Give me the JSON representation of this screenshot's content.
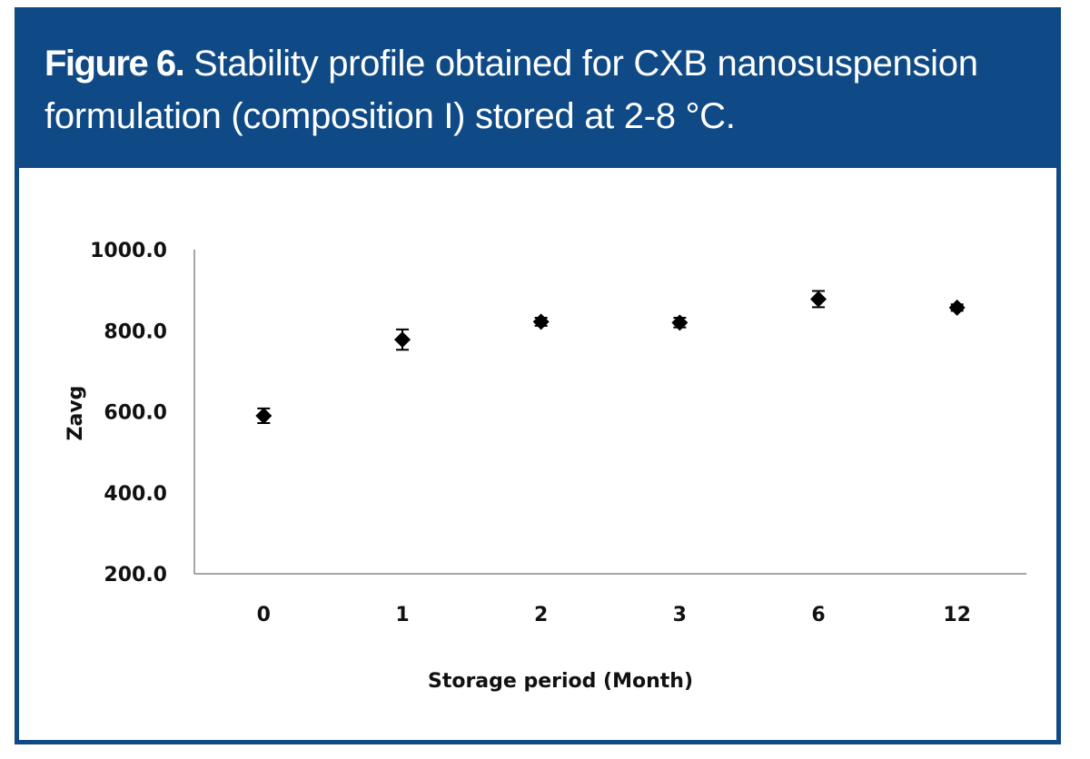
{
  "header": {
    "figure_label": "Figure 6.",
    "caption_line1": "Stability profile obtained for CXB nanosuspension",
    "caption_line2": "formulation (composition I) stored at 2-8 °C."
  },
  "colors": {
    "header_bg": "#0f4a86",
    "marker": "#000000"
  },
  "chart_data": {
    "type": "scatter",
    "title": "",
    "xlabel": "Storage period (Month)",
    "ylabel": "Zavg",
    "categories": [
      "0",
      "1",
      "2",
      "3",
      "6",
      "12"
    ],
    "values": [
      590,
      778,
      822,
      820,
      878,
      857
    ],
    "errors": [
      18,
      25,
      10,
      12,
      20,
      8
    ],
    "yticks": [
      "1000.0",
      "800.0",
      "600.0",
      "400.0",
      "200.0"
    ],
    "ylim": [
      200,
      1000
    ],
    "grid": false,
    "legend": false
  }
}
